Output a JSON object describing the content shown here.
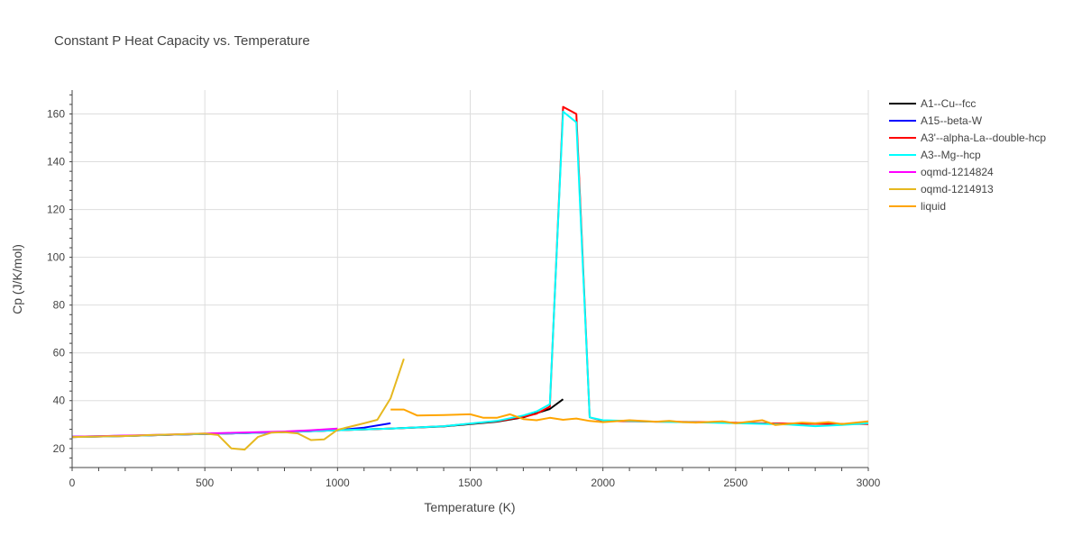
{
  "chart_data": {
    "type": "line",
    "title": "Constant P Heat Capacity vs. Temperature",
    "xlabel": "Temperature (K)",
    "ylabel": "Cp (J/K/mol)",
    "xlim": [
      0,
      3000
    ],
    "ylim": [
      12,
      170
    ],
    "x_ticks": [
      0,
      500,
      1000,
      1500,
      2000,
      2500,
      3000
    ],
    "y_ticks": [
      20,
      40,
      60,
      80,
      100,
      120,
      140,
      160
    ],
    "x_tick_labels": [
      "0",
      "500",
      "1000",
      "1500",
      "2000",
      "2500",
      "3000"
    ],
    "y_tick_labels": [
      "20",
      "40",
      "60",
      "80",
      "100",
      "120",
      "140",
      "160"
    ],
    "grid": true,
    "legend_position": "top-right",
    "series": [
      {
        "name": "A1--Cu--fcc",
        "color": "#000000",
        "points": [
          [
            0,
            24.8
          ],
          [
            200,
            25.2
          ],
          [
            400,
            25.8
          ],
          [
            600,
            26.3
          ],
          [
            800,
            26.9
          ],
          [
            1000,
            27.6
          ],
          [
            1200,
            28.3
          ],
          [
            1400,
            29.2
          ],
          [
            1600,
            31.2
          ],
          [
            1700,
            33.0
          ],
          [
            1800,
            36.5
          ],
          [
            1850,
            40.6
          ]
        ]
      },
      {
        "name": "A15--beta-W",
        "color": "#0000ff",
        "points": [
          [
            0,
            24.9
          ],
          [
            200,
            25.3
          ],
          [
            400,
            25.8
          ],
          [
            600,
            26.3
          ],
          [
            800,
            26.8
          ],
          [
            1000,
            27.6
          ],
          [
            1100,
            28.7
          ],
          [
            1200,
            30.5
          ]
        ]
      },
      {
        "name": "A3'--alpha-La--double-hcp",
        "color": "#ff0000",
        "points": [
          [
            0,
            24.8
          ],
          [
            200,
            25.2
          ],
          [
            400,
            25.8
          ],
          [
            600,
            26.3
          ],
          [
            800,
            26.9
          ],
          [
            1000,
            27.6
          ],
          [
            1200,
            28.3
          ],
          [
            1400,
            29.3
          ],
          [
            1600,
            31.4
          ],
          [
            1700,
            33.2
          ],
          [
            1750,
            34.5
          ],
          [
            1800,
            37.5
          ],
          [
            1850,
            163
          ],
          [
            1900,
            160
          ],
          [
            1950,
            33.0
          ],
          [
            2000,
            31.5
          ],
          [
            2200,
            31.2
          ],
          [
            2400,
            31.0
          ],
          [
            2600,
            30.5
          ],
          [
            2800,
            30.3
          ],
          [
            3000,
            30.2
          ]
        ]
      },
      {
        "name": "A3--Mg--hcp",
        "color": "#00ffff",
        "points": [
          [
            0,
            24.8
          ],
          [
            200,
            25.2
          ],
          [
            400,
            25.8
          ],
          [
            600,
            26.3
          ],
          [
            800,
            26.9
          ],
          [
            1000,
            27.6
          ],
          [
            1200,
            28.3
          ],
          [
            1400,
            29.3
          ],
          [
            1600,
            31.5
          ],
          [
            1700,
            33.8
          ],
          [
            1750,
            35.5
          ],
          [
            1800,
            38.5
          ],
          [
            1850,
            161
          ],
          [
            1900,
            156.5
          ],
          [
            1950,
            33.0
          ],
          [
            2000,
            31.8
          ],
          [
            2200,
            31.2
          ],
          [
            2400,
            30.8
          ],
          [
            2600,
            30.3
          ],
          [
            2700,
            30.0
          ],
          [
            2800,
            29.3
          ],
          [
            2900,
            29.8
          ],
          [
            3000,
            30.5
          ]
        ]
      },
      {
        "name": "oqmd-1214824",
        "color": "#ff00ff",
        "points": [
          [
            0,
            24.9
          ],
          [
            100,
            25.1
          ],
          [
            200,
            25.4
          ],
          [
            300,
            25.6
          ],
          [
            400,
            25.9
          ],
          [
            500,
            26.2
          ],
          [
            600,
            26.5
          ],
          [
            700,
            26.8
          ],
          [
            800,
            27.1
          ],
          [
            900,
            27.6
          ],
          [
            1000,
            28.3
          ]
        ]
      },
      {
        "name": "oqmd-1214913",
        "color": "#e6b81f",
        "points": [
          [
            0,
            24.8
          ],
          [
            100,
            25.0
          ],
          [
            200,
            25.2
          ],
          [
            300,
            25.6
          ],
          [
            400,
            25.9
          ],
          [
            500,
            26.2
          ],
          [
            550,
            25.6
          ],
          [
            600,
            20.0
          ],
          [
            650,
            19.5
          ],
          [
            700,
            24.8
          ],
          [
            750,
            26.6
          ],
          [
            800,
            26.8
          ],
          [
            850,
            26.3
          ],
          [
            900,
            23.5
          ],
          [
            950,
            23.8
          ],
          [
            1000,
            27.8
          ],
          [
            1100,
            30.5
          ],
          [
            1150,
            32.0
          ],
          [
            1200,
            41.0
          ],
          [
            1250,
            57.5
          ]
        ]
      },
      {
        "name": "liquid",
        "color": "#ffa500",
        "points": [
          [
            1200,
            36.3
          ],
          [
            1250,
            36.3
          ],
          [
            1300,
            33.8
          ],
          [
            1400,
            34.0
          ],
          [
            1500,
            34.3
          ],
          [
            1550,
            32.8
          ],
          [
            1600,
            32.8
          ],
          [
            1650,
            34.3
          ],
          [
            1700,
            32.3
          ],
          [
            1750,
            31.8
          ],
          [
            1800,
            32.8
          ],
          [
            1850,
            32.0
          ],
          [
            1900,
            32.5
          ],
          [
            1950,
            31.5
          ],
          [
            2000,
            31.0
          ],
          [
            2100,
            31.8
          ],
          [
            2200,
            31.2
          ],
          [
            2250,
            31.5
          ],
          [
            2300,
            31.0
          ],
          [
            2350,
            30.8
          ],
          [
            2450,
            31.3
          ],
          [
            2500,
            30.5
          ],
          [
            2600,
            31.8
          ],
          [
            2650,
            29.8
          ],
          [
            2750,
            30.8
          ],
          [
            2800,
            30.5
          ],
          [
            2850,
            31.0
          ],
          [
            2900,
            30.2
          ],
          [
            3000,
            31.3
          ]
        ]
      }
    ]
  }
}
